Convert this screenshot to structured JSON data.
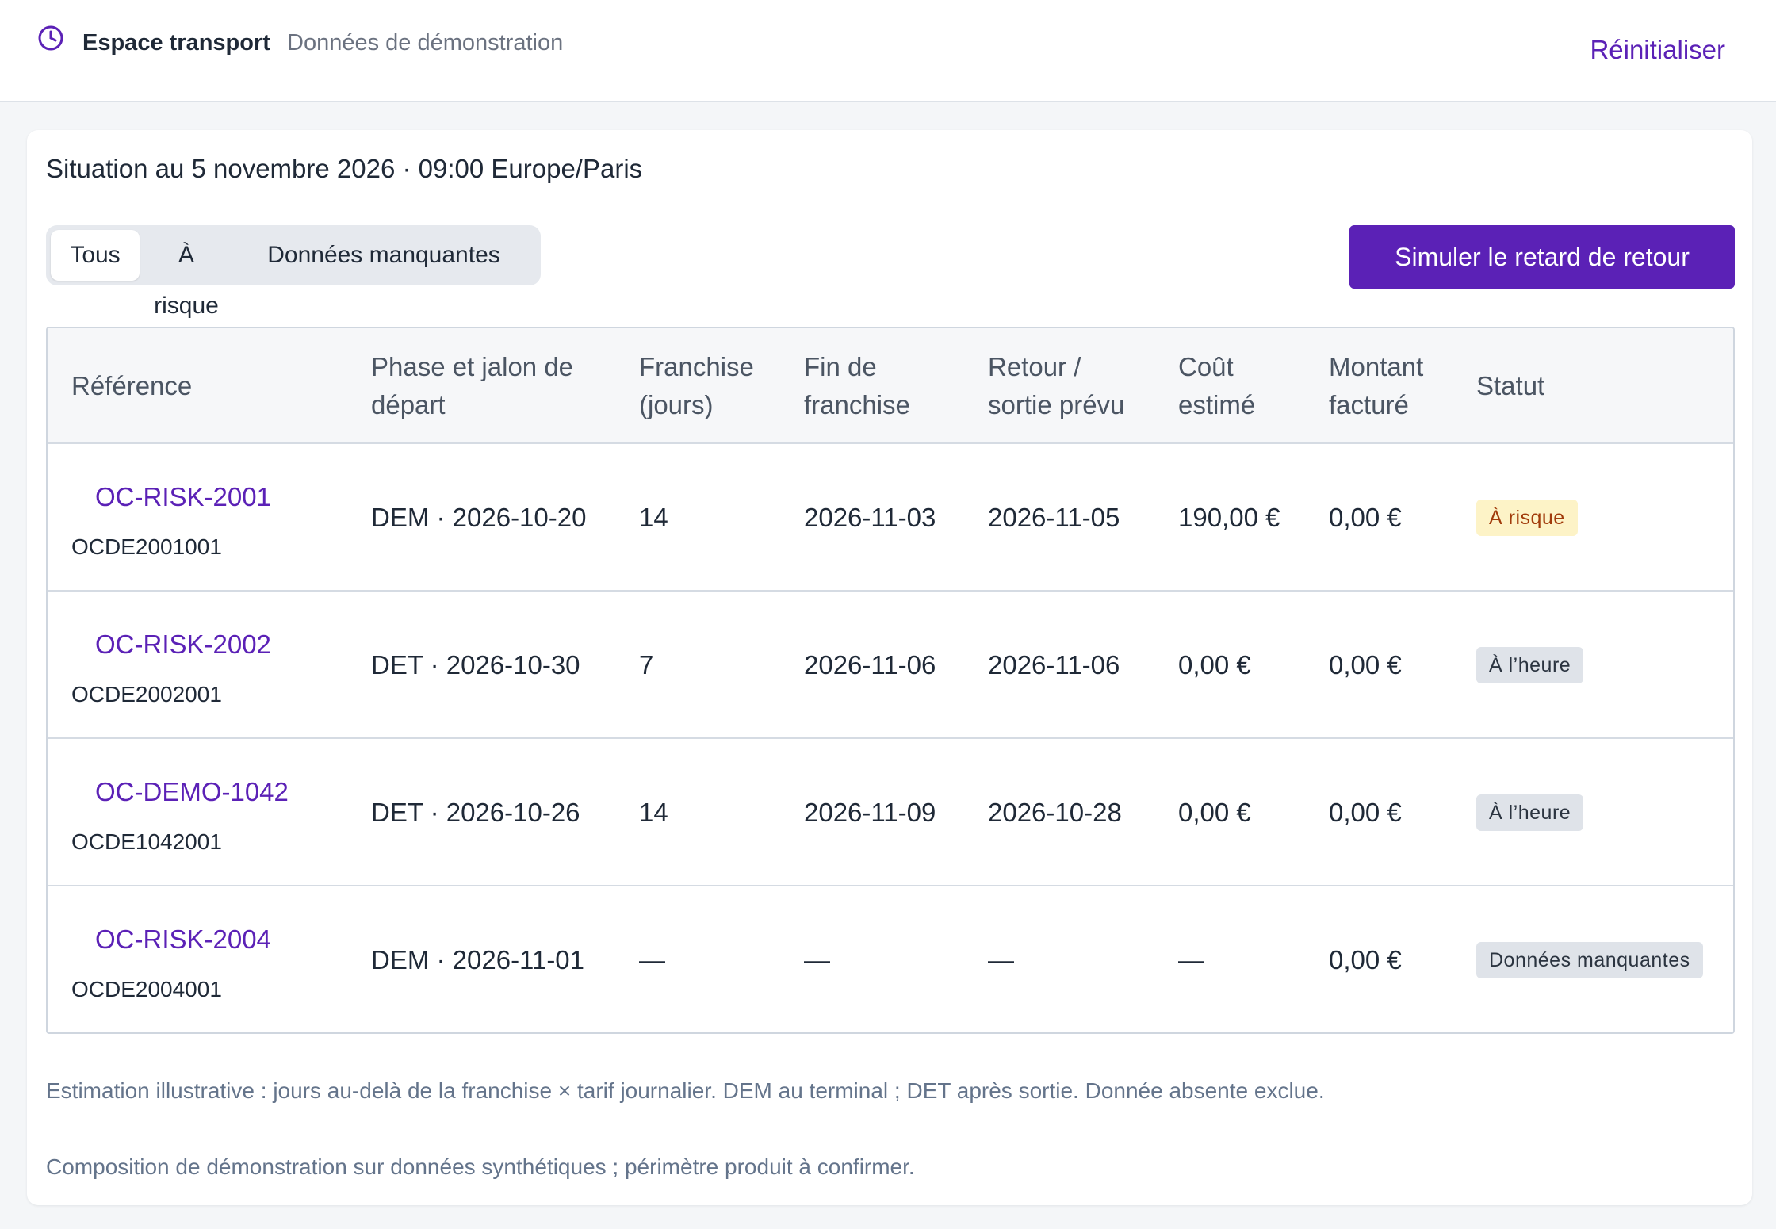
{
  "header": {
    "brand": "Espace transport",
    "subtitle": "Données de démonstration",
    "reset_label": "Réinitialiser",
    "icon": "clock-icon"
  },
  "main": {
    "situation": "Situation au 5 novembre 2026 · 09:00 Europe/Paris",
    "filters": [
      "Tous",
      "À risque",
      "Données manquantes"
    ],
    "active_filter": "Tous",
    "simulate_label": "Simuler le retard de retour",
    "columns": [
      [
        "Référence"
      ],
      [
        "Phase et jalon de",
        "départ"
      ],
      [
        "Franchise",
        "(jours)"
      ],
      [
        "Fin de",
        "franchise"
      ],
      [
        "Retour /",
        "sortie prévu"
      ],
      [
        "Coût",
        "estimé"
      ],
      [
        "Montant",
        "facturé"
      ],
      [
        "Statut"
      ]
    ],
    "rows": [
      {
        "ref": "OC-RISK-2001",
        "code": "OCDE2001001",
        "phase": "DEM · 2026-10-20",
        "franchise": "14",
        "fin": "2026-11-03",
        "retour": "2026-11-05",
        "cout": "190,00 €",
        "montant": "0,00 €",
        "statut": "À risque",
        "statut_kind": "risk"
      },
      {
        "ref": "OC-RISK-2002",
        "code": "OCDE2002001",
        "phase": "DET · 2026-10-30",
        "franchise": "7",
        "fin": "2026-11-06",
        "retour": "2026-11-06",
        "cout": "0,00 €",
        "montant": "0,00 €",
        "statut": "À l’heure",
        "statut_kind": "neutral"
      },
      {
        "ref": "OC-DEMO-1042",
        "code": "OCDE1042001",
        "phase": "DET · 2026-10-26",
        "franchise": "14",
        "fin": "2026-11-09",
        "retour": "2026-10-28",
        "cout": "0,00 €",
        "montant": "0,00 €",
        "statut": "À l’heure",
        "statut_kind": "neutral"
      },
      {
        "ref": "OC-RISK-2004",
        "code": "OCDE2004001",
        "phase": "DEM · 2026-11-01",
        "franchise": "—",
        "fin": "—",
        "retour": "—",
        "cout": "—",
        "montant": "0,00 €",
        "statut": "Données manquantes",
        "statut_kind": "neutral"
      }
    ],
    "note1": "Estimation illustrative : jours au-delà de la franchise × tarif journalier. DEM au terminal ; DET après sortie. Donnée absente exclue.",
    "note2": "Composition de démonstration sur données synthétiques ; périmètre produit à confirmer."
  },
  "colors": {
    "accent": "#5b21b6",
    "risk_bg": "#fdf3c7",
    "risk_text": "#a13b0b",
    "neutral_bg": "#dfe3e9",
    "neutral_text": "#2b3440"
  }
}
